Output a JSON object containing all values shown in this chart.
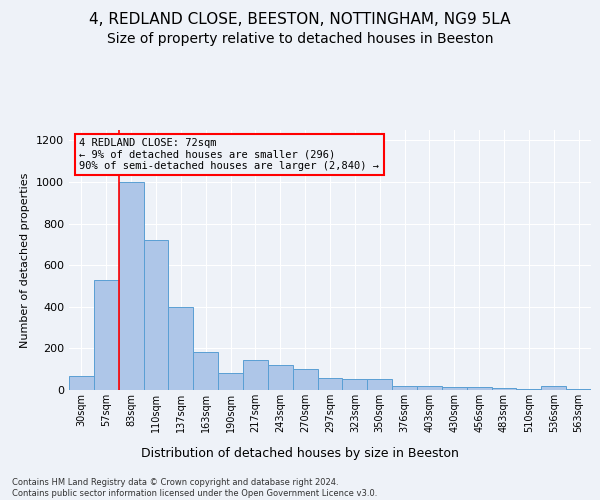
{
  "title1": "4, REDLAND CLOSE, BEESTON, NOTTINGHAM, NG9 5LA",
  "title2": "Size of property relative to detached houses in Beeston",
  "xlabel": "Distribution of detached houses by size in Beeston",
  "ylabel": "Number of detached properties",
  "footer": "Contains HM Land Registry data © Crown copyright and database right 2024.\nContains public sector information licensed under the Open Government Licence v3.0.",
  "bar_labels": [
    "30sqm",
    "57sqm",
    "83sqm",
    "110sqm",
    "137sqm",
    "163sqm",
    "190sqm",
    "217sqm",
    "243sqm",
    "270sqm",
    "297sqm",
    "323sqm",
    "350sqm",
    "376sqm",
    "403sqm",
    "430sqm",
    "456sqm",
    "483sqm",
    "510sqm",
    "536sqm",
    "563sqm"
  ],
  "bar_values": [
    65,
    530,
    1000,
    720,
    400,
    185,
    80,
    145,
    120,
    100,
    60,
    55,
    55,
    20,
    20,
    15,
    15,
    10,
    5,
    20,
    5
  ],
  "bar_color": "#aec6e8",
  "bar_edge_color": "#5a9fd4",
  "annotation_text": "4 REDLAND CLOSE: 72sqm\n← 9% of detached houses are smaller (296)\n90% of semi-detached houses are larger (2,840) →",
  "redline_x": 1.5,
  "ylim": [
    0,
    1250
  ],
  "yticks": [
    0,
    200,
    400,
    600,
    800,
    1000,
    1200
  ],
  "bg_color": "#eef2f8",
  "grid_color": "#ffffff",
  "title_fontsize": 11,
  "subtitle_fontsize": 10
}
